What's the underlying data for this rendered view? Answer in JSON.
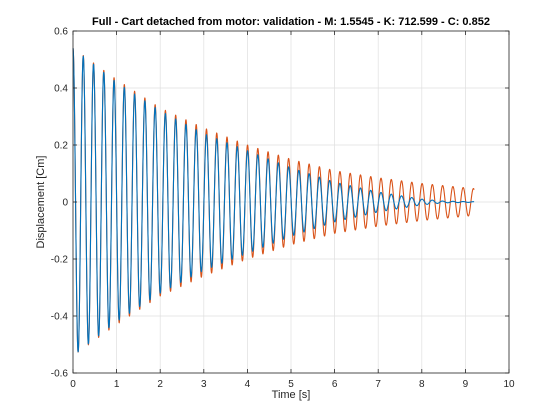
{
  "chart_data": {
    "type": "line",
    "title": "Full - Cart detached from motor: validation - M: 1.5545 - K: 712.599 - C: 0.852",
    "xlabel": "Time [s]",
    "ylabel": "Displacement [Cm]",
    "xlim": [
      0,
      10
    ],
    "ylim": [
      -0.6,
      0.6
    ],
    "xticks": [
      "0",
      "1",
      "2",
      "3",
      "4",
      "5",
      "6",
      "7",
      "8",
      "9",
      "10"
    ],
    "yticks": [
      "-0.6",
      "-0.4",
      "-0.2",
      "0",
      "0.2",
      "0.4",
      "0.6"
    ],
    "grid": true,
    "legend": "none",
    "colors": {
      "measured": "#0072BD",
      "model": "#D95319"
    },
    "series": [
      {
        "model": "damped-oscillation",
        "color": "#0072BD",
        "amplitude_at_t": [
          [
            0,
            0.54
          ],
          [
            1,
            0.42
          ],
          [
            2,
            0.32
          ],
          [
            3,
            0.24
          ],
          [
            4,
            0.18
          ],
          [
            5,
            0.12
          ],
          [
            6,
            0.07
          ],
          [
            7,
            0.035
          ],
          [
            8,
            0.01
          ],
          [
            8.5,
            0.003
          ],
          [
            9.2,
            0.001
          ]
        ],
        "period": 0.2355,
        "t_start": 0,
        "t_end": 9.2
      },
      {
        "model": "damped-oscillation",
        "color": "#D95319",
        "amplitude_at_t": [
          [
            0,
            0.54
          ],
          [
            1,
            0.43
          ],
          [
            2,
            0.33
          ],
          [
            3,
            0.26
          ],
          [
            4,
            0.2
          ],
          [
            5,
            0.15
          ],
          [
            6,
            0.11
          ],
          [
            7,
            0.085
          ],
          [
            8,
            0.065
          ],
          [
            9,
            0.05
          ],
          [
            9.2,
            0.047
          ]
        ],
        "period": 0.2355,
        "t_start": 0,
        "t_end": 9.2
      }
    ]
  }
}
